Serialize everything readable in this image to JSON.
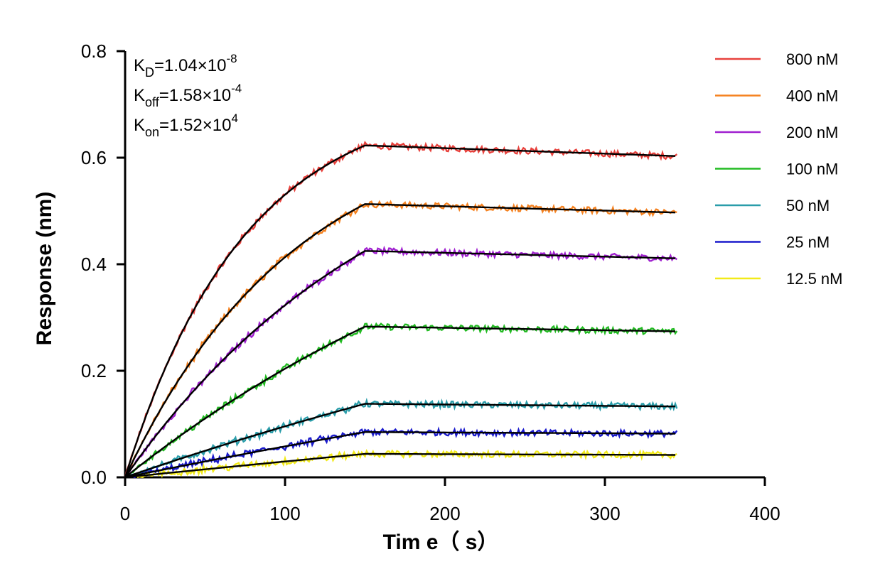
{
  "chart_data": {
    "type": "line",
    "xlabel": "Tim e（ s）",
    "ylabel": "Response (nm)",
    "xlim": [
      0,
      400
    ],
    "ylim": [
      0,
      0.8
    ],
    "x_ticks": [
      "0",
      "100",
      "200",
      "300",
      "400"
    ],
    "y_ticks": [
      "0.0",
      "0.2",
      "0.4",
      "0.6",
      "0.8"
    ],
    "grid": false,
    "legend_position": "top-right",
    "association_end": 150,
    "time_end": 345,
    "annotations": [
      {
        "base": "K",
        "sub": "D",
        "value": "=1.04×10",
        "exp": "-8"
      },
      {
        "base": "K",
        "sub": "off",
        "value": "=1.58×10",
        "exp": "-4"
      },
      {
        "base": "K",
        "sub": "on",
        "value": "=1.52×10",
        "exp": "4"
      }
    ],
    "fit_color": "#000000",
    "series": [
      {
        "name": "800 nM",
        "color": "#E8413C",
        "plateau": 0.623,
        "end": 0.603,
        "curvature": 2.0
      },
      {
        "name": "400 nM",
        "color": "#F58220",
        "plateau": 0.513,
        "end": 0.497,
        "curvature": 1.4
      },
      {
        "name": "200 nM",
        "color": "#A020D0",
        "plateau": 0.425,
        "end": 0.411,
        "curvature": 0.9
      },
      {
        "name": "100 nM",
        "color": "#22BB22",
        "plateau": 0.283,
        "end": 0.274,
        "curvature": 0.5
      },
      {
        "name": "50 nM",
        "color": "#2A9DAA",
        "plateau": 0.138,
        "end": 0.133,
        "curvature": 0.25
      },
      {
        "name": "25 nM",
        "color": "#1A1ACC",
        "plateau": 0.085,
        "end": 0.082,
        "curvature": 0.15
      },
      {
        "name": "12.5 nM",
        "color": "#F2EA18",
        "plateau": 0.044,
        "end": 0.042,
        "curvature": 0.08
      }
    ]
  }
}
